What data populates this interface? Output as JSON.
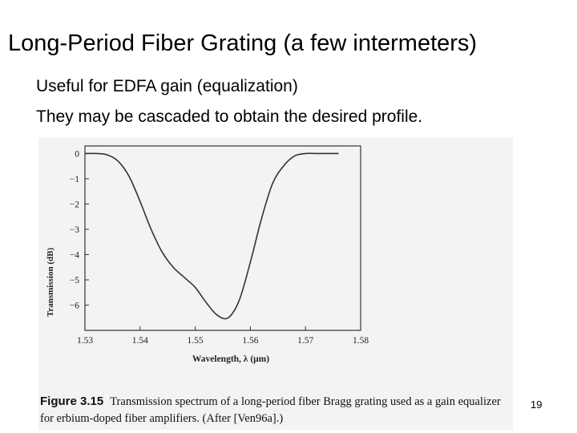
{
  "slide": {
    "title": "Long-Period Fiber Grating (a few intermeters)",
    "bullets": [
      "Useful for EDFA gain (equalization)",
      "They may be cascaded to obtain the desired profile."
    ],
    "slide_number": "19"
  },
  "figure": {
    "caption_label": "Figure 3.15",
    "caption_text": "Transmission spectrum of a long-period fiber Bragg grating used as a gain equalizer for erbium-doped fiber amplifiers. (After [Ven96a].)"
  },
  "chart_data": {
    "type": "line",
    "title": "",
    "xlabel": "Wavelength, λ (μm)",
    "ylabel": "Transmission (dB)",
    "xlim": [
      1.53,
      1.58
    ],
    "ylim": [
      -7,
      0.3
    ],
    "xticks": [
      "1.53",
      "1.54",
      "1.55",
      "1.56",
      "1.57",
      "1.58"
    ],
    "yticks": [
      "0",
      "−1",
      "−2",
      "−3",
      "−4",
      "−5",
      "−6"
    ],
    "grid": false,
    "series": [
      {
        "color": "#333333",
        "x": [
          1.53,
          1.532,
          1.534,
          1.536,
          1.538,
          1.54,
          1.542,
          1.544,
          1.546,
          1.548,
          1.55,
          1.552,
          1.554,
          1.556,
          1.558,
          1.56,
          1.562,
          1.564,
          1.566,
          1.568,
          1.57,
          1.572,
          1.574,
          1.576
        ],
        "y": [
          0,
          0,
          -0.05,
          -0.3,
          -0.9,
          -1.9,
          -3.0,
          -3.9,
          -4.5,
          -4.9,
          -5.3,
          -5.9,
          -6.4,
          -6.5,
          -5.8,
          -4.3,
          -2.6,
          -1.2,
          -0.5,
          -0.1,
          0,
          0,
          0,
          0
        ]
      }
    ]
  }
}
